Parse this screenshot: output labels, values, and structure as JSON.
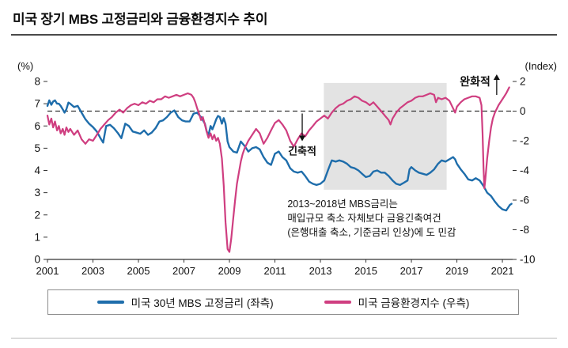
{
  "title": "미국 장기 MBS 고정금리와 금융환경지수 추이",
  "chart_data": {
    "type": "line",
    "x_axis": {
      "ticks": [
        2001,
        2003,
        2005,
        2007,
        2009,
        2011,
        2013,
        2015,
        2017,
        2019,
        2021
      ],
      "range": [
        2001,
        2021.45
      ]
    },
    "left_axis": {
      "label": "(%)",
      "ticks": [
        0,
        1,
        2,
        3,
        4,
        5,
        6,
        7,
        8
      ],
      "range": [
        0,
        8
      ]
    },
    "right_axis": {
      "label": "(Index)",
      "ticks": [
        2,
        0,
        -2,
        -4,
        -6,
        -8,
        -10
      ],
      "range": [
        -10,
        2
      ]
    },
    "zero_line": {
      "value": 0,
      "axis": "right"
    },
    "shaded_region": {
      "x": [
        2013.15,
        2018.55
      ],
      "y_right": [
        -5.3,
        1.9
      ],
      "color": "#e3e3e3"
    },
    "annotations": {
      "easing_label": "완화적",
      "tightening_label": "긴축적",
      "easing_arrow_x": 2020.75,
      "tightening_arrow_x": 2012.2,
      "note_x": 2011.55,
      "note_lines": [
        "2013~2018년  MBS금리는",
        "매입규모 축소 자체보다  금융긴축여건",
        "(은행대출 축소, 기준금리 인상)에 도 민감"
      ]
    },
    "series": [
      {
        "name": "미국 30년 MBS 고정금리 (좌측)",
        "axis": "left",
        "color": "#1e6dab",
        "width": 2.4,
        "points": [
          [
            2001.0,
            6.9
          ],
          [
            2001.08,
            7.15
          ],
          [
            2001.17,
            6.95
          ],
          [
            2001.25,
            7.1
          ],
          [
            2001.33,
            7.15
          ],
          [
            2001.42,
            7.0
          ],
          [
            2001.5,
            7.0
          ],
          [
            2001.58,
            6.9
          ],
          [
            2001.67,
            6.75
          ],
          [
            2001.75,
            6.6
          ],
          [
            2001.83,
            6.75
          ],
          [
            2001.92,
            7.05
          ],
          [
            2002.0,
            7.0
          ],
          [
            2002.17,
            6.85
          ],
          [
            2002.33,
            6.9
          ],
          [
            2002.5,
            6.6
          ],
          [
            2002.67,
            6.3
          ],
          [
            2002.83,
            6.1
          ],
          [
            2003.0,
            5.95
          ],
          [
            2003.17,
            5.75
          ],
          [
            2003.33,
            5.45
          ],
          [
            2003.45,
            5.25
          ],
          [
            2003.58,
            6.0
          ],
          [
            2003.75,
            6.05
          ],
          [
            2003.92,
            5.9
          ],
          [
            2004.08,
            5.7
          ],
          [
            2004.25,
            5.45
          ],
          [
            2004.42,
            6.1
          ],
          [
            2004.58,
            6.0
          ],
          [
            2004.75,
            5.75
          ],
          [
            2004.92,
            5.7
          ],
          [
            2005.08,
            5.65
          ],
          [
            2005.25,
            5.8
          ],
          [
            2005.42,
            5.6
          ],
          [
            2005.58,
            5.7
          ],
          [
            2005.75,
            5.9
          ],
          [
            2005.92,
            6.2
          ],
          [
            2006.08,
            6.25
          ],
          [
            2006.25,
            6.4
          ],
          [
            2006.42,
            6.6
          ],
          [
            2006.58,
            6.7
          ],
          [
            2006.75,
            6.4
          ],
          [
            2006.92,
            6.25
          ],
          [
            2007.08,
            6.2
          ],
          [
            2007.25,
            6.2
          ],
          [
            2007.42,
            6.55
          ],
          [
            2007.58,
            6.6
          ],
          [
            2007.75,
            6.4
          ],
          [
            2007.92,
            6.1
          ],
          [
            2008.0,
            5.75
          ],
          [
            2008.08,
            5.6
          ],
          [
            2008.17,
            6.0
          ],
          [
            2008.25,
            5.85
          ],
          [
            2008.33,
            6.05
          ],
          [
            2008.42,
            6.3
          ],
          [
            2008.5,
            6.45
          ],
          [
            2008.58,
            6.4
          ],
          [
            2008.67,
            6.1
          ],
          [
            2008.75,
            6.35
          ],
          [
            2008.83,
            6.1
          ],
          [
            2008.92,
            5.3
          ],
          [
            2009.0,
            5.05
          ],
          [
            2009.17,
            4.85
          ],
          [
            2009.33,
            4.8
          ],
          [
            2009.5,
            5.3
          ],
          [
            2009.67,
            5.1
          ],
          [
            2009.83,
            4.85
          ],
          [
            2010.0,
            5.0
          ],
          [
            2010.17,
            5.05
          ],
          [
            2010.33,
            4.95
          ],
          [
            2010.5,
            4.6
          ],
          [
            2010.67,
            4.35
          ],
          [
            2010.83,
            4.25
          ],
          [
            2011.0,
            4.75
          ],
          [
            2011.17,
            4.85
          ],
          [
            2011.33,
            4.6
          ],
          [
            2011.5,
            4.45
          ],
          [
            2011.67,
            4.1
          ],
          [
            2011.83,
            3.95
          ],
          [
            2012.0,
            3.9
          ],
          [
            2012.17,
            3.95
          ],
          [
            2012.33,
            3.75
          ],
          [
            2012.5,
            3.5
          ],
          [
            2012.67,
            3.4
          ],
          [
            2012.83,
            3.35
          ],
          [
            2013.0,
            3.4
          ],
          [
            2013.17,
            3.55
          ],
          [
            2013.33,
            4.0
          ],
          [
            2013.5,
            4.45
          ],
          [
            2013.67,
            4.4
          ],
          [
            2013.83,
            4.45
          ],
          [
            2014.0,
            4.4
          ],
          [
            2014.17,
            4.3
          ],
          [
            2014.33,
            4.15
          ],
          [
            2014.5,
            4.1
          ],
          [
            2014.67,
            4.0
          ],
          [
            2014.83,
            3.85
          ],
          [
            2015.0,
            3.7
          ],
          [
            2015.17,
            3.75
          ],
          [
            2015.33,
            3.95
          ],
          [
            2015.5,
            4.0
          ],
          [
            2015.67,
            3.9
          ],
          [
            2015.83,
            3.9
          ],
          [
            2016.0,
            3.75
          ],
          [
            2016.17,
            3.55
          ],
          [
            2016.33,
            3.4
          ],
          [
            2016.5,
            3.35
          ],
          [
            2016.67,
            3.45
          ],
          [
            2016.83,
            3.55
          ],
          [
            2016.92,
            4.05
          ],
          [
            2017.0,
            4.15
          ],
          [
            2017.17,
            4.0
          ],
          [
            2017.33,
            3.9
          ],
          [
            2017.5,
            3.85
          ],
          [
            2017.67,
            3.8
          ],
          [
            2017.83,
            3.9
          ],
          [
            2018.0,
            4.05
          ],
          [
            2018.17,
            4.3
          ],
          [
            2018.33,
            4.45
          ],
          [
            2018.5,
            4.4
          ],
          [
            2018.67,
            4.5
          ],
          [
            2018.83,
            4.6
          ],
          [
            2018.92,
            4.5
          ],
          [
            2019.0,
            4.3
          ],
          [
            2019.17,
            4.05
          ],
          [
            2019.33,
            3.85
          ],
          [
            2019.5,
            3.6
          ],
          [
            2019.67,
            3.55
          ],
          [
            2019.83,
            3.65
          ],
          [
            2020.0,
            3.55
          ],
          [
            2020.17,
            3.3
          ],
          [
            2020.33,
            3.0
          ],
          [
            2020.5,
            2.85
          ],
          [
            2020.67,
            2.6
          ],
          [
            2020.83,
            2.4
          ],
          [
            2021.0,
            2.25
          ],
          [
            2021.17,
            2.2
          ],
          [
            2021.33,
            2.45
          ],
          [
            2021.4,
            2.5
          ]
        ]
      },
      {
        "name": "미국 금융환경지수 (우측)",
        "axis": "right",
        "color": "#cf3e80",
        "width": 2.2,
        "points": [
          [
            2001.0,
            -0.3
          ],
          [
            2001.08,
            -0.9
          ],
          [
            2001.17,
            -0.5
          ],
          [
            2001.25,
            -1.1
          ],
          [
            2001.33,
            -0.7
          ],
          [
            2001.42,
            -1.3
          ],
          [
            2001.5,
            -1.0
          ],
          [
            2001.58,
            -1.5
          ],
          [
            2001.67,
            -1.2
          ],
          [
            2001.75,
            -1.6
          ],
          [
            2001.83,
            -1.1
          ],
          [
            2001.92,
            -1.4
          ],
          [
            2002.0,
            -1.2
          ],
          [
            2002.17,
            -1.6
          ],
          [
            2002.33,
            -1.3
          ],
          [
            2002.5,
            -1.9
          ],
          [
            2002.67,
            -2.2
          ],
          [
            2002.83,
            -1.9
          ],
          [
            2003.0,
            -2.0
          ],
          [
            2003.17,
            -1.6
          ],
          [
            2003.33,
            -1.2
          ],
          [
            2003.5,
            -0.9
          ],
          [
            2003.67,
            -0.6
          ],
          [
            2003.83,
            -0.4
          ],
          [
            2004.0,
            -0.1
          ],
          [
            2004.17,
            0.1
          ],
          [
            2004.33,
            -0.1
          ],
          [
            2004.5,
            0.2
          ],
          [
            2004.67,
            0.4
          ],
          [
            2004.83,
            0.5
          ],
          [
            2005.0,
            0.4
          ],
          [
            2005.17,
            0.6
          ],
          [
            2005.33,
            0.5
          ],
          [
            2005.5,
            0.7
          ],
          [
            2005.67,
            0.6
          ],
          [
            2005.83,
            0.8
          ],
          [
            2006.0,
            0.8
          ],
          [
            2006.17,
            1.0
          ],
          [
            2006.33,
            0.9
          ],
          [
            2006.5,
            1.0
          ],
          [
            2006.67,
            1.1
          ],
          [
            2006.83,
            1.0
          ],
          [
            2007.0,
            1.1
          ],
          [
            2007.17,
            1.2
          ],
          [
            2007.33,
            1.1
          ],
          [
            2007.42,
            0.9
          ],
          [
            2007.5,
            0.6
          ],
          [
            2007.58,
            0.2
          ],
          [
            2007.67,
            -0.2
          ],
          [
            2007.75,
            -0.6
          ],
          [
            2007.83,
            -0.4
          ],
          [
            2007.92,
            -0.9
          ],
          [
            2008.0,
            -1.4
          ],
          [
            2008.08,
            -1.8
          ],
          [
            2008.17,
            -1.5
          ],
          [
            2008.25,
            -1.9
          ],
          [
            2008.33,
            -1.6
          ],
          [
            2008.42,
            -2.0
          ],
          [
            2008.5,
            -1.8
          ],
          [
            2008.58,
            -2.2
          ],
          [
            2008.67,
            -3.2
          ],
          [
            2008.75,
            -5.0
          ],
          [
            2008.83,
            -7.5
          ],
          [
            2008.92,
            -9.3
          ],
          [
            2009.0,
            -9.5
          ],
          [
            2009.08,
            -8.6
          ],
          [
            2009.17,
            -7.2
          ],
          [
            2009.25,
            -6.0
          ],
          [
            2009.33,
            -4.9
          ],
          [
            2009.42,
            -4.1
          ],
          [
            2009.5,
            -3.4
          ],
          [
            2009.58,
            -2.9
          ],
          [
            2009.67,
            -2.5
          ],
          [
            2009.83,
            -2.0
          ],
          [
            2010.0,
            -1.6
          ],
          [
            2010.17,
            -1.2
          ],
          [
            2010.33,
            -1.5
          ],
          [
            2010.5,
            -2.2
          ],
          [
            2010.67,
            -1.8
          ],
          [
            2010.83,
            -1.3
          ],
          [
            2011.0,
            -0.8
          ],
          [
            2011.17,
            -0.6
          ],
          [
            2011.33,
            -0.9
          ],
          [
            2011.5,
            -1.3
          ],
          [
            2011.67,
            -2.0
          ],
          [
            2011.83,
            -2.4
          ],
          [
            2012.0,
            -1.9
          ],
          [
            2012.17,
            -1.5
          ],
          [
            2012.33,
            -1.7
          ],
          [
            2012.5,
            -1.3
          ],
          [
            2012.67,
            -1.0
          ],
          [
            2012.83,
            -0.7
          ],
          [
            2013.0,
            -0.5
          ],
          [
            2013.17,
            -0.3
          ],
          [
            2013.33,
            -0.5
          ],
          [
            2013.5,
            -0.1
          ],
          [
            2013.67,
            0.2
          ],
          [
            2013.83,
            0.4
          ],
          [
            2014.0,
            0.5
          ],
          [
            2014.17,
            0.7
          ],
          [
            2014.33,
            0.8
          ],
          [
            2014.5,
            1.0
          ],
          [
            2014.67,
            0.9
          ],
          [
            2014.83,
            0.7
          ],
          [
            2015.0,
            0.6
          ],
          [
            2015.17,
            0.4
          ],
          [
            2015.33,
            0.6
          ],
          [
            2015.5,
            0.3
          ],
          [
            2015.67,
            0.0
          ],
          [
            2015.83,
            -0.3
          ],
          [
            2016.0,
            -0.6
          ],
          [
            2016.08,
            -0.9
          ],
          [
            2016.17,
            -0.5
          ],
          [
            2016.33,
            -0.1
          ],
          [
            2016.5,
            0.2
          ],
          [
            2016.67,
            0.4
          ],
          [
            2016.83,
            0.6
          ],
          [
            2017.0,
            0.7
          ],
          [
            2017.17,
            0.9
          ],
          [
            2017.33,
            1.0
          ],
          [
            2017.5,
            1.0
          ],
          [
            2017.67,
            1.1
          ],
          [
            2017.83,
            1.2
          ],
          [
            2018.0,
            1.1
          ],
          [
            2018.08,
            0.6
          ],
          [
            2018.17,
            0.9
          ],
          [
            2018.33,
            0.8
          ],
          [
            2018.5,
            0.9
          ],
          [
            2018.67,
            0.7
          ],
          [
            2018.83,
            0.2
          ],
          [
            2018.92,
            -0.1
          ],
          [
            2019.0,
            0.3
          ],
          [
            2019.17,
            0.6
          ],
          [
            2019.33,
            0.8
          ],
          [
            2019.5,
            0.9
          ],
          [
            2019.67,
            1.0
          ],
          [
            2019.83,
            1.0
          ],
          [
            2020.0,
            0.9
          ],
          [
            2020.08,
            0.4
          ],
          [
            2020.13,
            -1.5
          ],
          [
            2020.17,
            -3.8
          ],
          [
            2020.21,
            -5.2
          ],
          [
            2020.25,
            -4.6
          ],
          [
            2020.33,
            -3.2
          ],
          [
            2020.42,
            -2.0
          ],
          [
            2020.5,
            -1.1
          ],
          [
            2020.58,
            -0.5
          ],
          [
            2020.67,
            -0.1
          ],
          [
            2020.83,
            0.4
          ],
          [
            2021.0,
            0.8
          ],
          [
            2021.17,
            1.2
          ],
          [
            2021.3,
            1.6
          ]
        ]
      }
    ]
  }
}
